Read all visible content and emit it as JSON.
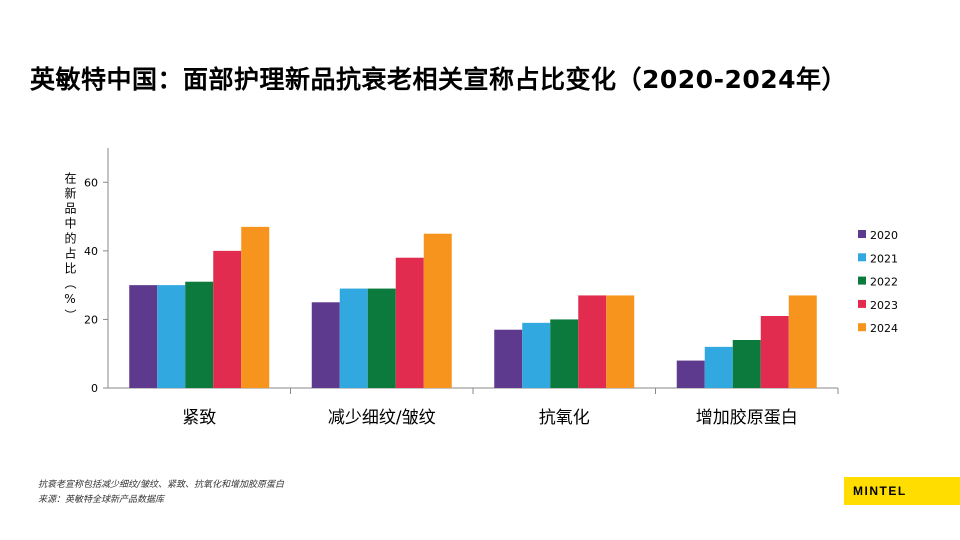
{
  "title": "英敏特中国：面部护理新品抗衰老相关宣称占比变化（2020-2024年）",
  "footnotes": [
    "抗衰老宣称包括减少细纹/皱纹、紧致、抗氧化和增加胶原蛋白",
    "来源：英敏特全球新产品数据库"
  ],
  "logo": "MINTEL",
  "chart_data": {
    "type": "bar",
    "title": "英敏特中国：面部护理新品抗衰老相关宣称占比变化（2020-2024年）",
    "xlabel": "",
    "ylabel": "在新品中的占比（%）",
    "categories": [
      "紧致",
      "减少细纹/皱纹",
      "抗氧化",
      "增加胶原蛋白"
    ],
    "series": [
      {
        "name": "2020",
        "color": "#5E3A8E",
        "values": [
          30,
          25,
          17,
          8
        ]
      },
      {
        "name": "2021",
        "color": "#31A8DF",
        "values": [
          30,
          29,
          19,
          12
        ]
      },
      {
        "name": "2022",
        "color": "#0C7A3C",
        "values": [
          31,
          29,
          20,
          14
        ]
      },
      {
        "name": "2023",
        "color": "#E12B4F",
        "values": [
          40,
          38,
          27,
          21
        ]
      },
      {
        "name": "2024",
        "color": "#F7941D",
        "values": [
          47,
          45,
          27,
          27
        ]
      }
    ],
    "ylim": [
      0,
      70
    ],
    "yticks": [
      0,
      20,
      40,
      60
    ],
    "grid": false,
    "legend": "right"
  }
}
